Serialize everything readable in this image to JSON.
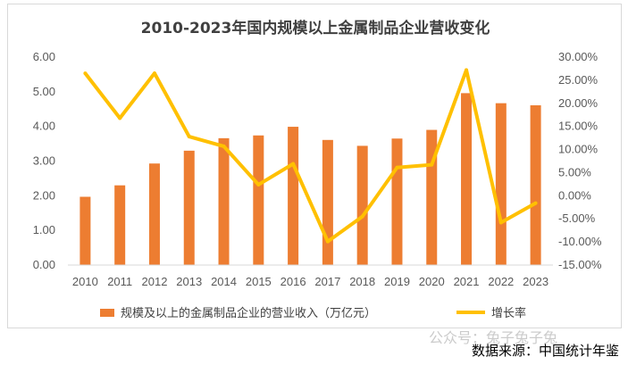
{
  "chart_data": {
    "type": "bar+line",
    "title": "2010-2023年国内规模以上金属制品企业营收变化",
    "categories": [
      "2010",
      "2011",
      "2012",
      "2013",
      "2014",
      "2015",
      "2016",
      "2017",
      "2018",
      "2019",
      "2020",
      "2021",
      "2022",
      "2023"
    ],
    "series": [
      {
        "name": "规模及以上的金属制品企业的营业收入（万亿元）",
        "type": "bar",
        "axis": "left",
        "values": [
          1.97,
          2.3,
          2.93,
          3.3,
          3.66,
          3.74,
          3.99,
          3.61,
          3.44,
          3.65,
          3.9,
          4.96,
          4.67,
          4.61
        ]
      },
      {
        "name": "增长率",
        "type": "line",
        "axis": "right",
        "values": [
          26.5,
          16.8,
          26.5,
          12.8,
          10.7,
          2.4,
          6.9,
          -9.9,
          -4.5,
          6.1,
          6.7,
          27.2,
          -5.8,
          -1.6
        ]
      }
    ],
    "ylim_left": [
      0,
      6
    ],
    "yticks_left": [
      "6.00",
      "5.00",
      "4.00",
      "3.00",
      "2.00",
      "1.00",
      "0.00"
    ],
    "ylim_right": [
      -15,
      30
    ],
    "yticks_right": [
      "30.00%",
      "25.00%",
      "20.00%",
      "15.00%",
      "10.00%",
      "5.00%",
      "0.00%",
      "-5.00%",
      "-10.00%",
      "-15.00%"
    ],
    "grid": false,
    "legend_position": "bottom",
    "colors": {
      "bar": "#ED7D31",
      "line": "#FFC000"
    }
  },
  "source_note": "数据来源：中国统计年鉴",
  "watermark": "公众号：兔子兔子兔"
}
